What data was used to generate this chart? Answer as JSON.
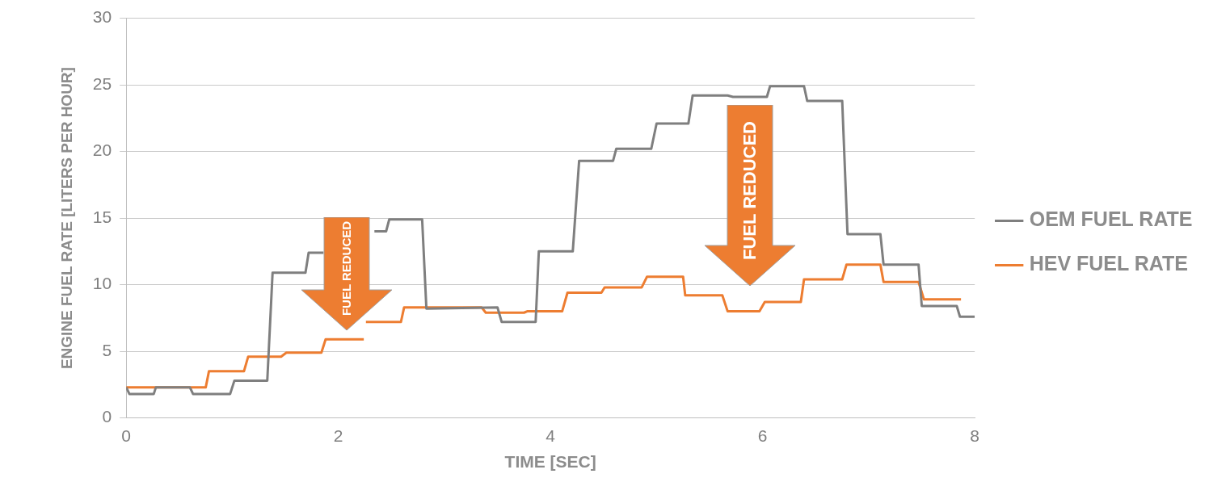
{
  "chart_data": {
    "type": "line",
    "xlabel": "TIME [SEC]",
    "ylabel": "ENGINE FUEL RATE [LITERS PER HOUR]",
    "xlim": [
      0,
      8
    ],
    "xticks": [
      0,
      2,
      4,
      6,
      8
    ],
    "ylim": [
      0,
      30
    ],
    "yticks": [
      0,
      5,
      10,
      15,
      20,
      25,
      30
    ],
    "grid": "y",
    "legend": "right",
    "marker": "none",
    "line_style": "solid",
    "annotations": [
      "FUEL REDUCED",
      "FUEL REDUCED"
    ],
    "series": [
      {
        "name": "OEM FUEL RATE",
        "color": "#7f7f7f",
        "x": [
          0,
          0.03,
          0.26,
          0.28,
          0.6,
          0.63,
          0.98,
          1.02,
          1.33,
          1.38,
          1.69,
          1.72,
          1.86,
          2.0,
          2.34,
          2.45,
          2.48,
          2.79,
          2.83,
          3.5,
          3.54,
          3.86,
          3.89,
          4.21,
          4.27,
          4.59,
          4.62,
          4.95,
          5.0,
          5.3,
          5.34,
          5.67,
          5.72,
          6.04,
          6.07,
          6.39,
          6.42,
          6.75,
          6.8,
          7.11,
          7.14,
          7.47,
          7.5,
          7.83,
          7.86,
          8.0
        ],
        "values": [
          2.3,
          1.8,
          1.8,
          2.3,
          2.3,
          1.8,
          1.8,
          2.8,
          2.8,
          10.9,
          10.9,
          12.4,
          12.4,
          null,
          14.0,
          14.0,
          14.9,
          14.9,
          8.2,
          8.3,
          7.2,
          7.2,
          12.5,
          12.5,
          19.3,
          19.3,
          20.2,
          20.2,
          22.1,
          22.1,
          24.2,
          24.2,
          24.1,
          24.1,
          24.9,
          24.9,
          23.8,
          23.8,
          13.8,
          13.8,
          11.5,
          11.5,
          8.4,
          8.4,
          7.6,
          7.6
        ]
      },
      {
        "name": "HEV FUEL RATE",
        "color": "#ed7d31",
        "x": [
          0,
          0.75,
          0.78,
          1.11,
          1.15,
          1.46,
          1.51,
          1.84,
          1.88,
          2.24,
          2.25,
          2.26,
          2.59,
          2.62,
          3.35,
          3.39,
          3.75,
          3.78,
          4.11,
          4.16,
          4.48,
          4.51,
          4.86,
          4.91,
          5.25,
          5.27,
          5.62,
          5.67,
          5.97,
          6.02,
          6.36,
          6.39,
          6.75,
          6.79,
          7.11,
          7.14,
          7.47,
          7.52,
          7.87
        ],
        "values": [
          2.3,
          2.3,
          3.5,
          3.5,
          4.6,
          4.6,
          4.9,
          4.9,
          5.9,
          5.9,
          null,
          7.2,
          7.2,
          8.3,
          8.3,
          7.9,
          7.9,
          8.0,
          8.0,
          9.4,
          9.4,
          9.8,
          9.8,
          10.6,
          10.6,
          9.2,
          9.2,
          8.0,
          8.0,
          8.7,
          8.7,
          10.4,
          10.4,
          11.5,
          11.5,
          10.2,
          10.2,
          8.9,
          8.9
        ]
      }
    ]
  }
}
